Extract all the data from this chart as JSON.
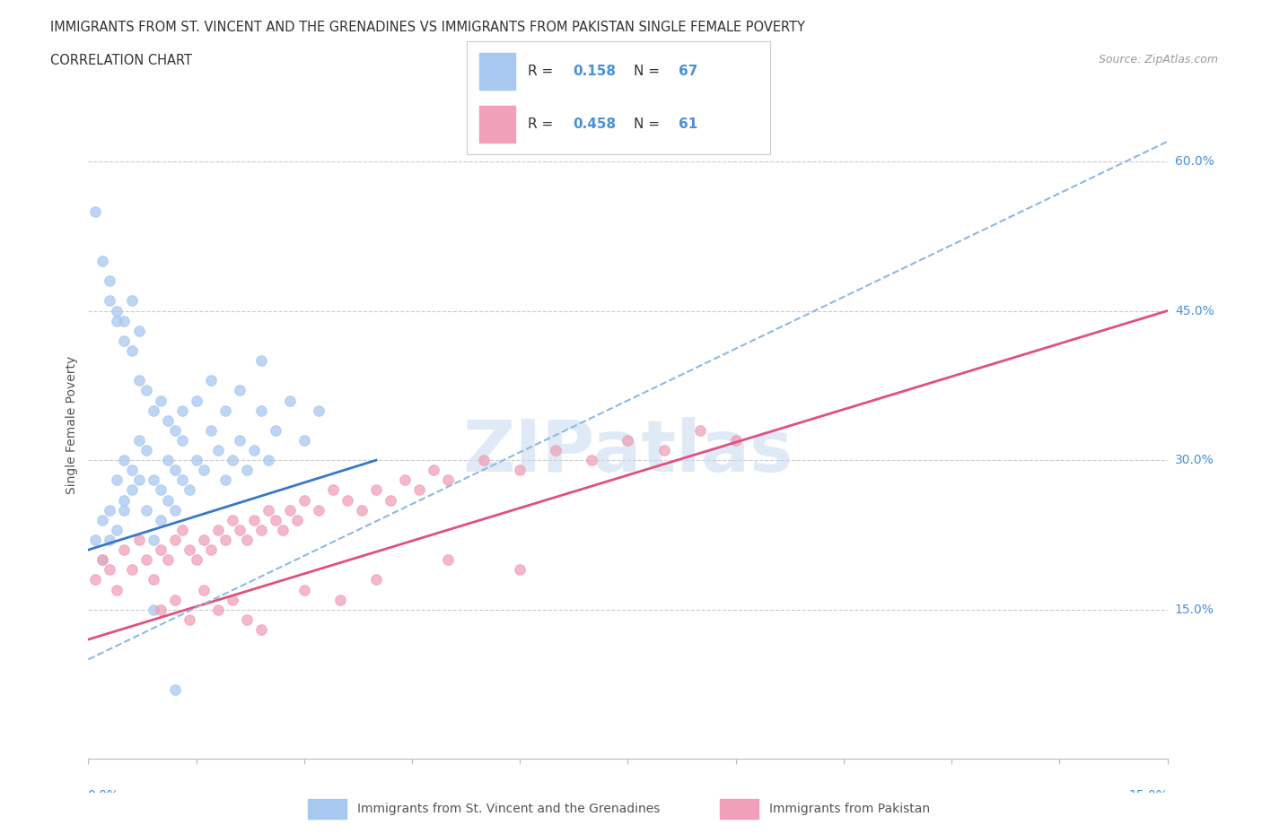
{
  "title_line1": "IMMIGRANTS FROM ST. VINCENT AND THE GRENADINES VS IMMIGRANTS FROM PAKISTAN SINGLE FEMALE POVERTY",
  "title_line2": "CORRELATION CHART",
  "source": "Source: ZipAtlas.com",
  "ylabel": "Single Female Poverty",
  "yticks": [
    "15.0%",
    "30.0%",
    "45.0%",
    "60.0%"
  ],
  "ytick_vals": [
    0.15,
    0.3,
    0.45,
    0.6
  ],
  "xrange": [
    0.0,
    0.15
  ],
  "yrange": [
    0.0,
    0.67
  ],
  "R1": 0.158,
  "N1": 67,
  "R2": 0.458,
  "N2": 61,
  "color_blue": "#a8c8f0",
  "color_blue_fill": "#a8c8f0",
  "color_pink": "#f0a0b8",
  "color_blue_line": "#3878c8",
  "color_pink_line": "#e05080",
  "color_dashed": "#90b8e0",
  "color_blue_text": "#4a90d9",
  "watermark": "ZIPatlas",
  "watermark_color": "#c8daf0",
  "sv_x": [
    0.001,
    0.002,
    0.002,
    0.003,
    0.003,
    0.004,
    0.004,
    0.005,
    0.005,
    0.005,
    0.006,
    0.006,
    0.007,
    0.007,
    0.008,
    0.008,
    0.009,
    0.009,
    0.01,
    0.01,
    0.011,
    0.011,
    0.012,
    0.012,
    0.013,
    0.013,
    0.014,
    0.015,
    0.016,
    0.017,
    0.018,
    0.019,
    0.02,
    0.021,
    0.022,
    0.023,
    0.024,
    0.025,
    0.026,
    0.028,
    0.03,
    0.032,
    0.003,
    0.004,
    0.005,
    0.006,
    0.007,
    0.008,
    0.009,
    0.01,
    0.011,
    0.012,
    0.013,
    0.015,
    0.017,
    0.019,
    0.021,
    0.024,
    0.001,
    0.002,
    0.003,
    0.004,
    0.005,
    0.006,
    0.007,
    0.009,
    0.012
  ],
  "sv_y": [
    0.22,
    0.2,
    0.24,
    0.25,
    0.22,
    0.23,
    0.28,
    0.26,
    0.3,
    0.25,
    0.27,
    0.29,
    0.32,
    0.28,
    0.31,
    0.25,
    0.28,
    0.22,
    0.27,
    0.24,
    0.26,
    0.3,
    0.25,
    0.29,
    0.28,
    0.32,
    0.27,
    0.3,
    0.29,
    0.33,
    0.31,
    0.28,
    0.3,
    0.32,
    0.29,
    0.31,
    0.35,
    0.3,
    0.33,
    0.36,
    0.32,
    0.35,
    0.46,
    0.44,
    0.42,
    0.41,
    0.38,
    0.37,
    0.35,
    0.36,
    0.34,
    0.33,
    0.35,
    0.36,
    0.38,
    0.35,
    0.37,
    0.4,
    0.55,
    0.5,
    0.48,
    0.45,
    0.44,
    0.46,
    0.43,
    0.15,
    0.07
  ],
  "pk_x": [
    0.001,
    0.002,
    0.003,
    0.004,
    0.005,
    0.006,
    0.007,
    0.008,
    0.009,
    0.01,
    0.011,
    0.012,
    0.013,
    0.014,
    0.015,
    0.016,
    0.017,
    0.018,
    0.019,
    0.02,
    0.021,
    0.022,
    0.023,
    0.024,
    0.025,
    0.026,
    0.027,
    0.028,
    0.029,
    0.03,
    0.032,
    0.034,
    0.036,
    0.038,
    0.04,
    0.042,
    0.044,
    0.046,
    0.048,
    0.05,
    0.055,
    0.06,
    0.065,
    0.07,
    0.075,
    0.08,
    0.085,
    0.09,
    0.01,
    0.012,
    0.014,
    0.016,
    0.018,
    0.02,
    0.022,
    0.024,
    0.03,
    0.035,
    0.04,
    0.05,
    0.06
  ],
  "pk_y": [
    0.18,
    0.2,
    0.19,
    0.17,
    0.21,
    0.19,
    0.22,
    0.2,
    0.18,
    0.21,
    0.2,
    0.22,
    0.23,
    0.21,
    0.2,
    0.22,
    0.21,
    0.23,
    0.22,
    0.24,
    0.23,
    0.22,
    0.24,
    0.23,
    0.25,
    0.24,
    0.23,
    0.25,
    0.24,
    0.26,
    0.25,
    0.27,
    0.26,
    0.25,
    0.27,
    0.26,
    0.28,
    0.27,
    0.29,
    0.28,
    0.3,
    0.29,
    0.31,
    0.3,
    0.32,
    0.31,
    0.33,
    0.32,
    0.15,
    0.16,
    0.14,
    0.17,
    0.15,
    0.16,
    0.14,
    0.13,
    0.17,
    0.16,
    0.18,
    0.2,
    0.19
  ],
  "sv_trend_x": [
    0.0,
    0.04
  ],
  "sv_trend_y": [
    0.21,
    0.3
  ],
  "pk_trend_x": [
    0.0,
    0.15
  ],
  "pk_trend_y": [
    0.12,
    0.45
  ],
  "dash_trend_x": [
    0.0,
    0.15
  ],
  "dash_trend_y": [
    0.1,
    0.62
  ]
}
